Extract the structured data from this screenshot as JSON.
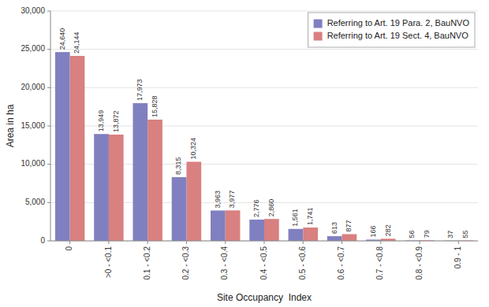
{
  "chart_data": {
    "type": "bar",
    "categories": [
      "0",
      ">0 - <0.1",
      "0.1 - <0.2",
      "0.2 - <0.3",
      "0.3 - <0.4",
      "0.4 - <0.5",
      "0.5 - <0.6",
      "0.6 - <0.7",
      "0.7 - <0.8",
      "0.8 - <0.9",
      "0.9 - 1"
    ],
    "series": [
      {
        "name": "Referring to Art. 19 Para. 2, BauNVO",
        "color": "#8080C0",
        "values": [
          24640,
          13949,
          17973,
          8315,
          3963,
          2776,
          1561,
          613,
          166,
          56,
          37
        ],
        "value_labels": [
          "24,640",
          "13,949",
          "17,973",
          "8,315",
          "3,963",
          "2,776",
          "1,561",
          "613",
          "166",
          "56",
          "37"
        ]
      },
      {
        "name": "Referring to Art. 19 Sect. 4, BauNVO",
        "color": "#D98080",
        "values": [
          24144,
          13872,
          15828,
          10324,
          3977,
          2860,
          1741,
          877,
          282,
          79,
          55
        ],
        "value_labels": [
          "24,144",
          "13,872",
          "15,828",
          "10,324",
          "3,977",
          "2,860",
          "1,741",
          "877",
          "282",
          "79",
          "55"
        ]
      }
    ],
    "xlabel": "Site Occupancy  Index",
    "ylabel": "Area in ha",
    "ylim": [
      0,
      30000
    ],
    "yticks": [
      0,
      {
        "value": 5000,
        "label": "5,000"
      },
      {
        "value": 10000,
        "label": "10,000"
      },
      {
        "value": 15000,
        "label": "15,000"
      },
      {
        "value": 20000,
        "label": "20,000"
      },
      {
        "value": 25000,
        "label": "25,000"
      },
      {
        "value": 30000,
        "label": "30,000"
      }
    ],
    "grid": true,
    "legend": "upper right",
    "data_labels": true
  }
}
